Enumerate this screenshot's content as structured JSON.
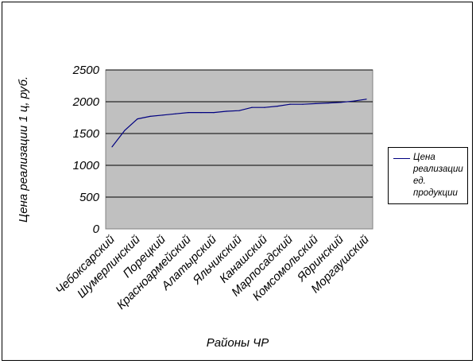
{
  "chart_data": {
    "type": "line",
    "title": "",
    "xlabel": "Районы ЧР",
    "ylabel": "Цена реализации 1 ц, руб.",
    "ylim": [
      0,
      2500
    ],
    "yticks": [
      0,
      500,
      1000,
      1500,
      2000,
      2500
    ],
    "grid": "horizontal",
    "legend_position": "right",
    "plot_background": "#c0c0c0",
    "line_color": "#000080",
    "x": [
      "Чебоксарский",
      "",
      "Шумерлинский",
      "",
      "Порецкий",
      "",
      "Красноармейский",
      "",
      "Алатырский",
      "",
      "Яльчикский",
      "",
      "Канашский",
      "",
      "Марпосадский",
      "",
      "Комсомольский",
      "",
      "Ядринский",
      "",
      "Моргаушский"
    ],
    "series": [
      {
        "name": "Цена реализации ед. продукции",
        "values": [
          1290,
          1550,
          1730,
          1770,
          1790,
          1810,
          1830,
          1830,
          1830,
          1850,
          1860,
          1910,
          1910,
          1930,
          1960,
          1960,
          1970,
          1980,
          1990,
          2010,
          2040
        ]
      }
    ]
  }
}
